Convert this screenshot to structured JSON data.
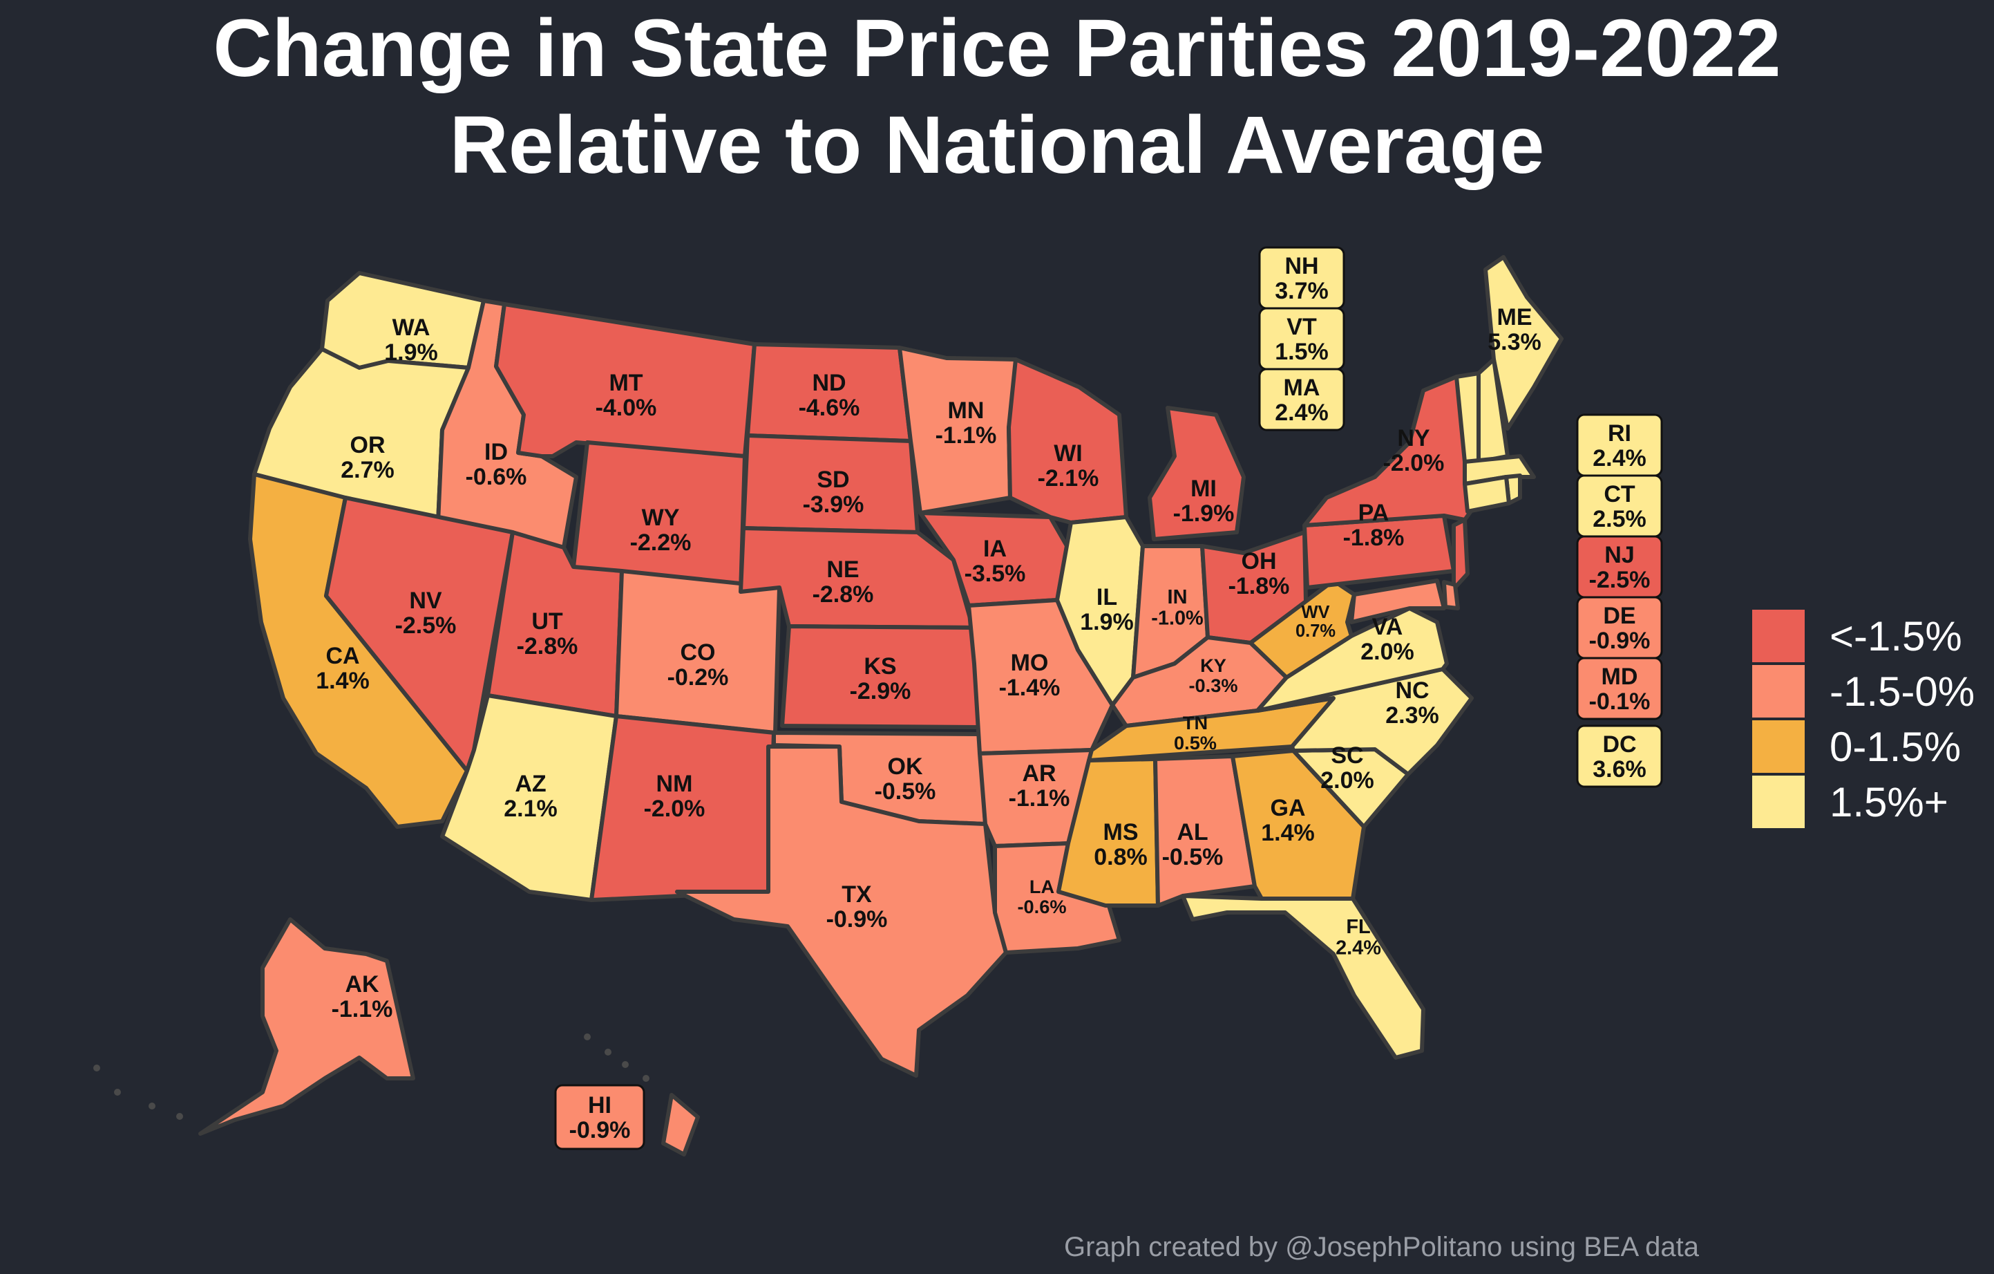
{
  "title": {
    "line1": "Change in State Price Parities 2019-2022",
    "line2": "Relative to National Average"
  },
  "legend": [
    {
      "label": "<-1.5%",
      "color": "#ea5f55"
    },
    {
      "label": "-1.5-0%",
      "color": "#fb8c6f"
    },
    {
      "label": "0-1.5%",
      "color": "#f4b042"
    },
    {
      "label": "1.5%+",
      "color": "#feea92"
    }
  ],
  "credit": "Graph created by @JosephPolitano using BEA data",
  "states": [
    {
      "abbr": "WA",
      "value": "1.9%",
      "bin": 3
    },
    {
      "abbr": "OR",
      "value": "2.7%",
      "bin": 3
    },
    {
      "abbr": "CA",
      "value": "1.4%",
      "bin": 2
    },
    {
      "abbr": "ID",
      "value": "-0.6%",
      "bin": 1
    },
    {
      "abbr": "NV",
      "value": "-2.5%",
      "bin": 0
    },
    {
      "abbr": "MT",
      "value": "-4.0%",
      "bin": 0
    },
    {
      "abbr": "WY",
      "value": "-2.2%",
      "bin": 0
    },
    {
      "abbr": "UT",
      "value": "-2.8%",
      "bin": 0
    },
    {
      "abbr": "AZ",
      "value": "2.1%",
      "bin": 3
    },
    {
      "abbr": "CO",
      "value": "-0.2%",
      "bin": 1
    },
    {
      "abbr": "NM",
      "value": "-2.0%",
      "bin": 0
    },
    {
      "abbr": "ND",
      "value": "-4.6%",
      "bin": 0
    },
    {
      "abbr": "SD",
      "value": "-3.9%",
      "bin": 0
    },
    {
      "abbr": "NE",
      "value": "-2.8%",
      "bin": 0
    },
    {
      "abbr": "KS",
      "value": "-2.9%",
      "bin": 0
    },
    {
      "abbr": "OK",
      "value": "-0.5%",
      "bin": 1
    },
    {
      "abbr": "TX",
      "value": "-0.9%",
      "bin": 1
    },
    {
      "abbr": "MN",
      "value": "-1.1%",
      "bin": 1
    },
    {
      "abbr": "IA",
      "value": "-3.5%",
      "bin": 0
    },
    {
      "abbr": "MO",
      "value": "-1.4%",
      "bin": 1
    },
    {
      "abbr": "AR",
      "value": "-1.1%",
      "bin": 1
    },
    {
      "abbr": "LA",
      "value": "-0.6%",
      "bin": 1
    },
    {
      "abbr": "WI",
      "value": "-2.1%",
      "bin": 0
    },
    {
      "abbr": "IL",
      "value": "1.9%",
      "bin": 3
    },
    {
      "abbr": "MI",
      "value": "-1.9%",
      "bin": 0
    },
    {
      "abbr": "IN",
      "value": "-1.0%",
      "bin": 1
    },
    {
      "abbr": "OH",
      "value": "-1.8%",
      "bin": 0
    },
    {
      "abbr": "KY",
      "value": "-0.3%",
      "bin": 1
    },
    {
      "abbr": "TN",
      "value": "0.5%",
      "bin": 2
    },
    {
      "abbr": "MS",
      "value": "0.8%",
      "bin": 2
    },
    {
      "abbr": "AL",
      "value": "-0.5%",
      "bin": 1
    },
    {
      "abbr": "GA",
      "value": "1.4%",
      "bin": 2
    },
    {
      "abbr": "FL",
      "value": "2.4%",
      "bin": 3
    },
    {
      "abbr": "SC",
      "value": "2.0%",
      "bin": 3
    },
    {
      "abbr": "NC",
      "value": "2.3%",
      "bin": 3
    },
    {
      "abbr": "VA",
      "value": "2.0%",
      "bin": 3
    },
    {
      "abbr": "WV",
      "value": "0.7%",
      "bin": 2
    },
    {
      "abbr": "PA",
      "value": "-1.8%",
      "bin": 0
    },
    {
      "abbr": "NY",
      "value": "-2.0%",
      "bin": 0
    },
    {
      "abbr": "ME",
      "value": "5.3%",
      "bin": 3
    },
    {
      "abbr": "AK",
      "value": "-1.1%",
      "bin": 1
    },
    {
      "abbr": "HI",
      "value": "-0.9%",
      "bin": 1
    },
    {
      "abbr": "NH",
      "value": "3.7%",
      "bin": 3
    },
    {
      "abbr": "VT",
      "value": "1.5%",
      "bin": 3
    },
    {
      "abbr": "MA",
      "value": "2.4%",
      "bin": 3
    },
    {
      "abbr": "RI",
      "value": "2.4%",
      "bin": 3
    },
    {
      "abbr": "CT",
      "value": "2.5%",
      "bin": 3
    },
    {
      "abbr": "NJ",
      "value": "-2.5%",
      "bin": 0
    },
    {
      "abbr": "DE",
      "value": "-0.9%",
      "bin": 1
    },
    {
      "abbr": "MD",
      "value": "-0.1%",
      "bin": 1
    },
    {
      "abbr": "DC",
      "value": "3.6%",
      "bin": 3
    }
  ]
}
